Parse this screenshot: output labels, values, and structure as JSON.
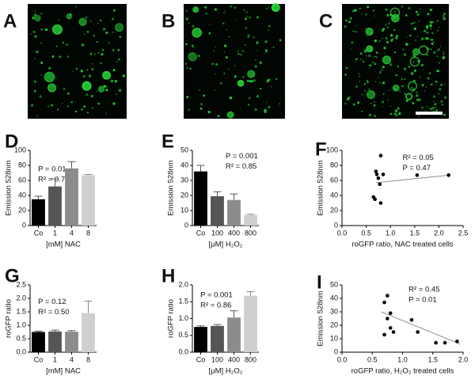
{
  "images": [
    {
      "label": "A"
    },
    {
      "label": "B"
    },
    {
      "label": "C"
    }
  ],
  "chart_data": [
    {
      "type": "bar",
      "label": "D",
      "y_label": "Emission 528nm",
      "x_label": "[mM] NAC",
      "categories": [
        "Co",
        "1",
        "4",
        "8"
      ],
      "values": [
        35,
        52,
        76,
        67
      ],
      "errors": [
        4,
        10,
        9,
        1
      ],
      "colors": [
        "#000000",
        "#555555",
        "#8c8c8c",
        "#cfcfcf"
      ],
      "ylim": [
        0,
        100
      ],
      "yticks": [
        0,
        20,
        40,
        60,
        80,
        100
      ],
      "annotations": [
        "P = 0.01",
        "R² = 0.72"
      ]
    },
    {
      "type": "bar",
      "label": "E",
      "y_label": "Emission 528nm",
      "x_label": "[μM] H₂O₂",
      "categories": [
        "Co",
        "100",
        "400",
        "800"
      ],
      "values": [
        36,
        19.5,
        17,
        7
      ],
      "errors": [
        4,
        3,
        4,
        0.5
      ],
      "colors": [
        "#000000",
        "#555555",
        "#8c8c8c",
        "#cfcfcf"
      ],
      "ylim": [
        0,
        50
      ],
      "yticks": [
        0,
        10,
        20,
        30,
        40,
        50
      ],
      "annotations": [
        "P = 0.001",
        "R² = 0.85"
      ]
    },
    {
      "type": "scatter",
      "label": "F",
      "y_label": "Emission 528nm",
      "x_label": "roGFP ratio, NAC treated cells",
      "x": [
        0.65,
        0.68,
        0.7,
        0.72,
        0.75,
        0.78,
        0.8,
        0.8,
        0.85,
        1.55,
        2.2
      ],
      "values": [
        38,
        35,
        72,
        68,
        63,
        55,
        93,
        30,
        68,
        67,
        67
      ],
      "color": "#000000",
      "trendline": {
        "x": [
          0.7,
          2.2
        ],
        "y": [
          57,
          67
        ]
      },
      "xlim": [
        0,
        2.5
      ],
      "xticks": [
        {
          "value": 0,
          "label": "0.0"
        },
        {
          "value": 0.5,
          "label": "0.5"
        },
        {
          "value": 1,
          "label": "1.0"
        },
        {
          "value": 1.5,
          "label": "1.5"
        },
        {
          "value": 2,
          "label": "2.0"
        },
        {
          "value": 2.5,
          "label": "2.5"
        }
      ],
      "ylim": [
        0,
        100
      ],
      "yticks": [
        0,
        20,
        40,
        60,
        80,
        100
      ],
      "annotations": [
        "R² = 0.05",
        "P = 0.47"
      ]
    },
    {
      "type": "bar",
      "label": "G",
      "y_label": "roGFP ratio",
      "x_label": "[mM] NAC",
      "categories": [
        "Co",
        "1",
        "4",
        "8"
      ],
      "values": [
        0.75,
        0.77,
        0.76,
        1.45
      ],
      "errors": [
        0.03,
        0.05,
        0.04,
        0.45
      ],
      "colors": [
        "#000000",
        "#555555",
        "#8c8c8c",
        "#cfcfcf"
      ],
      "ylim": [
        0,
        2.5
      ],
      "yticks": [
        {
          "value": 0,
          "label": "0.0"
        },
        {
          "value": 0.5,
          "label": "0.5"
        },
        {
          "value": 1,
          "label": "1.0"
        },
        {
          "value": 1.5,
          "label": "1.5"
        },
        {
          "value": 2,
          "label": "2.0"
        },
        {
          "value": 2.5,
          "label": "2.5"
        }
      ],
      "annotations": [
        "P = 0.12",
        "R² = 0.50"
      ]
    },
    {
      "type": "bar",
      "label": "H",
      "y_label": "roGFP ratio",
      "x_label": "[μM] H₂O₂",
      "categories": [
        "Co",
        "100",
        "400",
        "800"
      ],
      "values": [
        0.75,
        0.78,
        1.03,
        1.68
      ],
      "errors": [
        0.03,
        0.04,
        0.2,
        0.12
      ],
      "colors": [
        "#000000",
        "#555555",
        "#8c8c8c",
        "#cfcfcf"
      ],
      "ylim": [
        0,
        2
      ],
      "yticks": [
        {
          "value": 0,
          "label": "0.0"
        },
        {
          "value": 0.5,
          "label": "0.5"
        },
        {
          "value": 1,
          "label": "1.0"
        },
        {
          "value": 1.5,
          "label": "1.5"
        },
        {
          "value": 2,
          "label": "2.0"
        }
      ],
      "annotations": [
        "P = 0.001",
        "R² = 0.86"
      ]
    },
    {
      "type": "scatter",
      "label": "I",
      "y_label": "Emission 528nm",
      "x_label": "roGFP ratio, H₂O₂ treated cells",
      "x": [
        0.7,
        0.75,
        0.8,
        0.75,
        0.8,
        0.7,
        0.85,
        1.15,
        1.25,
        1.55,
        1.7,
        1.9
      ],
      "values": [
        37,
        42,
        29,
        25,
        18,
        13,
        15,
        24,
        15,
        7,
        7,
        8
      ],
      "color": "#000000",
      "trendline": {
        "x": [
          0.65,
          1.95
        ],
        "y": [
          30,
          6
        ]
      },
      "xlim": [
        0,
        2
      ],
      "xticks": [
        {
          "value": 0,
          "label": "0.0"
        },
        {
          "value": 0.5,
          "label": "0.5"
        },
        {
          "value": 1,
          "label": "1.0"
        },
        {
          "value": 1.5,
          "label": "1.5"
        },
        {
          "value": 2,
          "label": "2.0"
        }
      ],
      "ylim": [
        0,
        50
      ],
      "yticks": [
        0,
        10,
        20,
        30,
        40,
        50
      ],
      "annotations": [
        "R² = 0.45",
        "P = 0.01"
      ]
    }
  ]
}
